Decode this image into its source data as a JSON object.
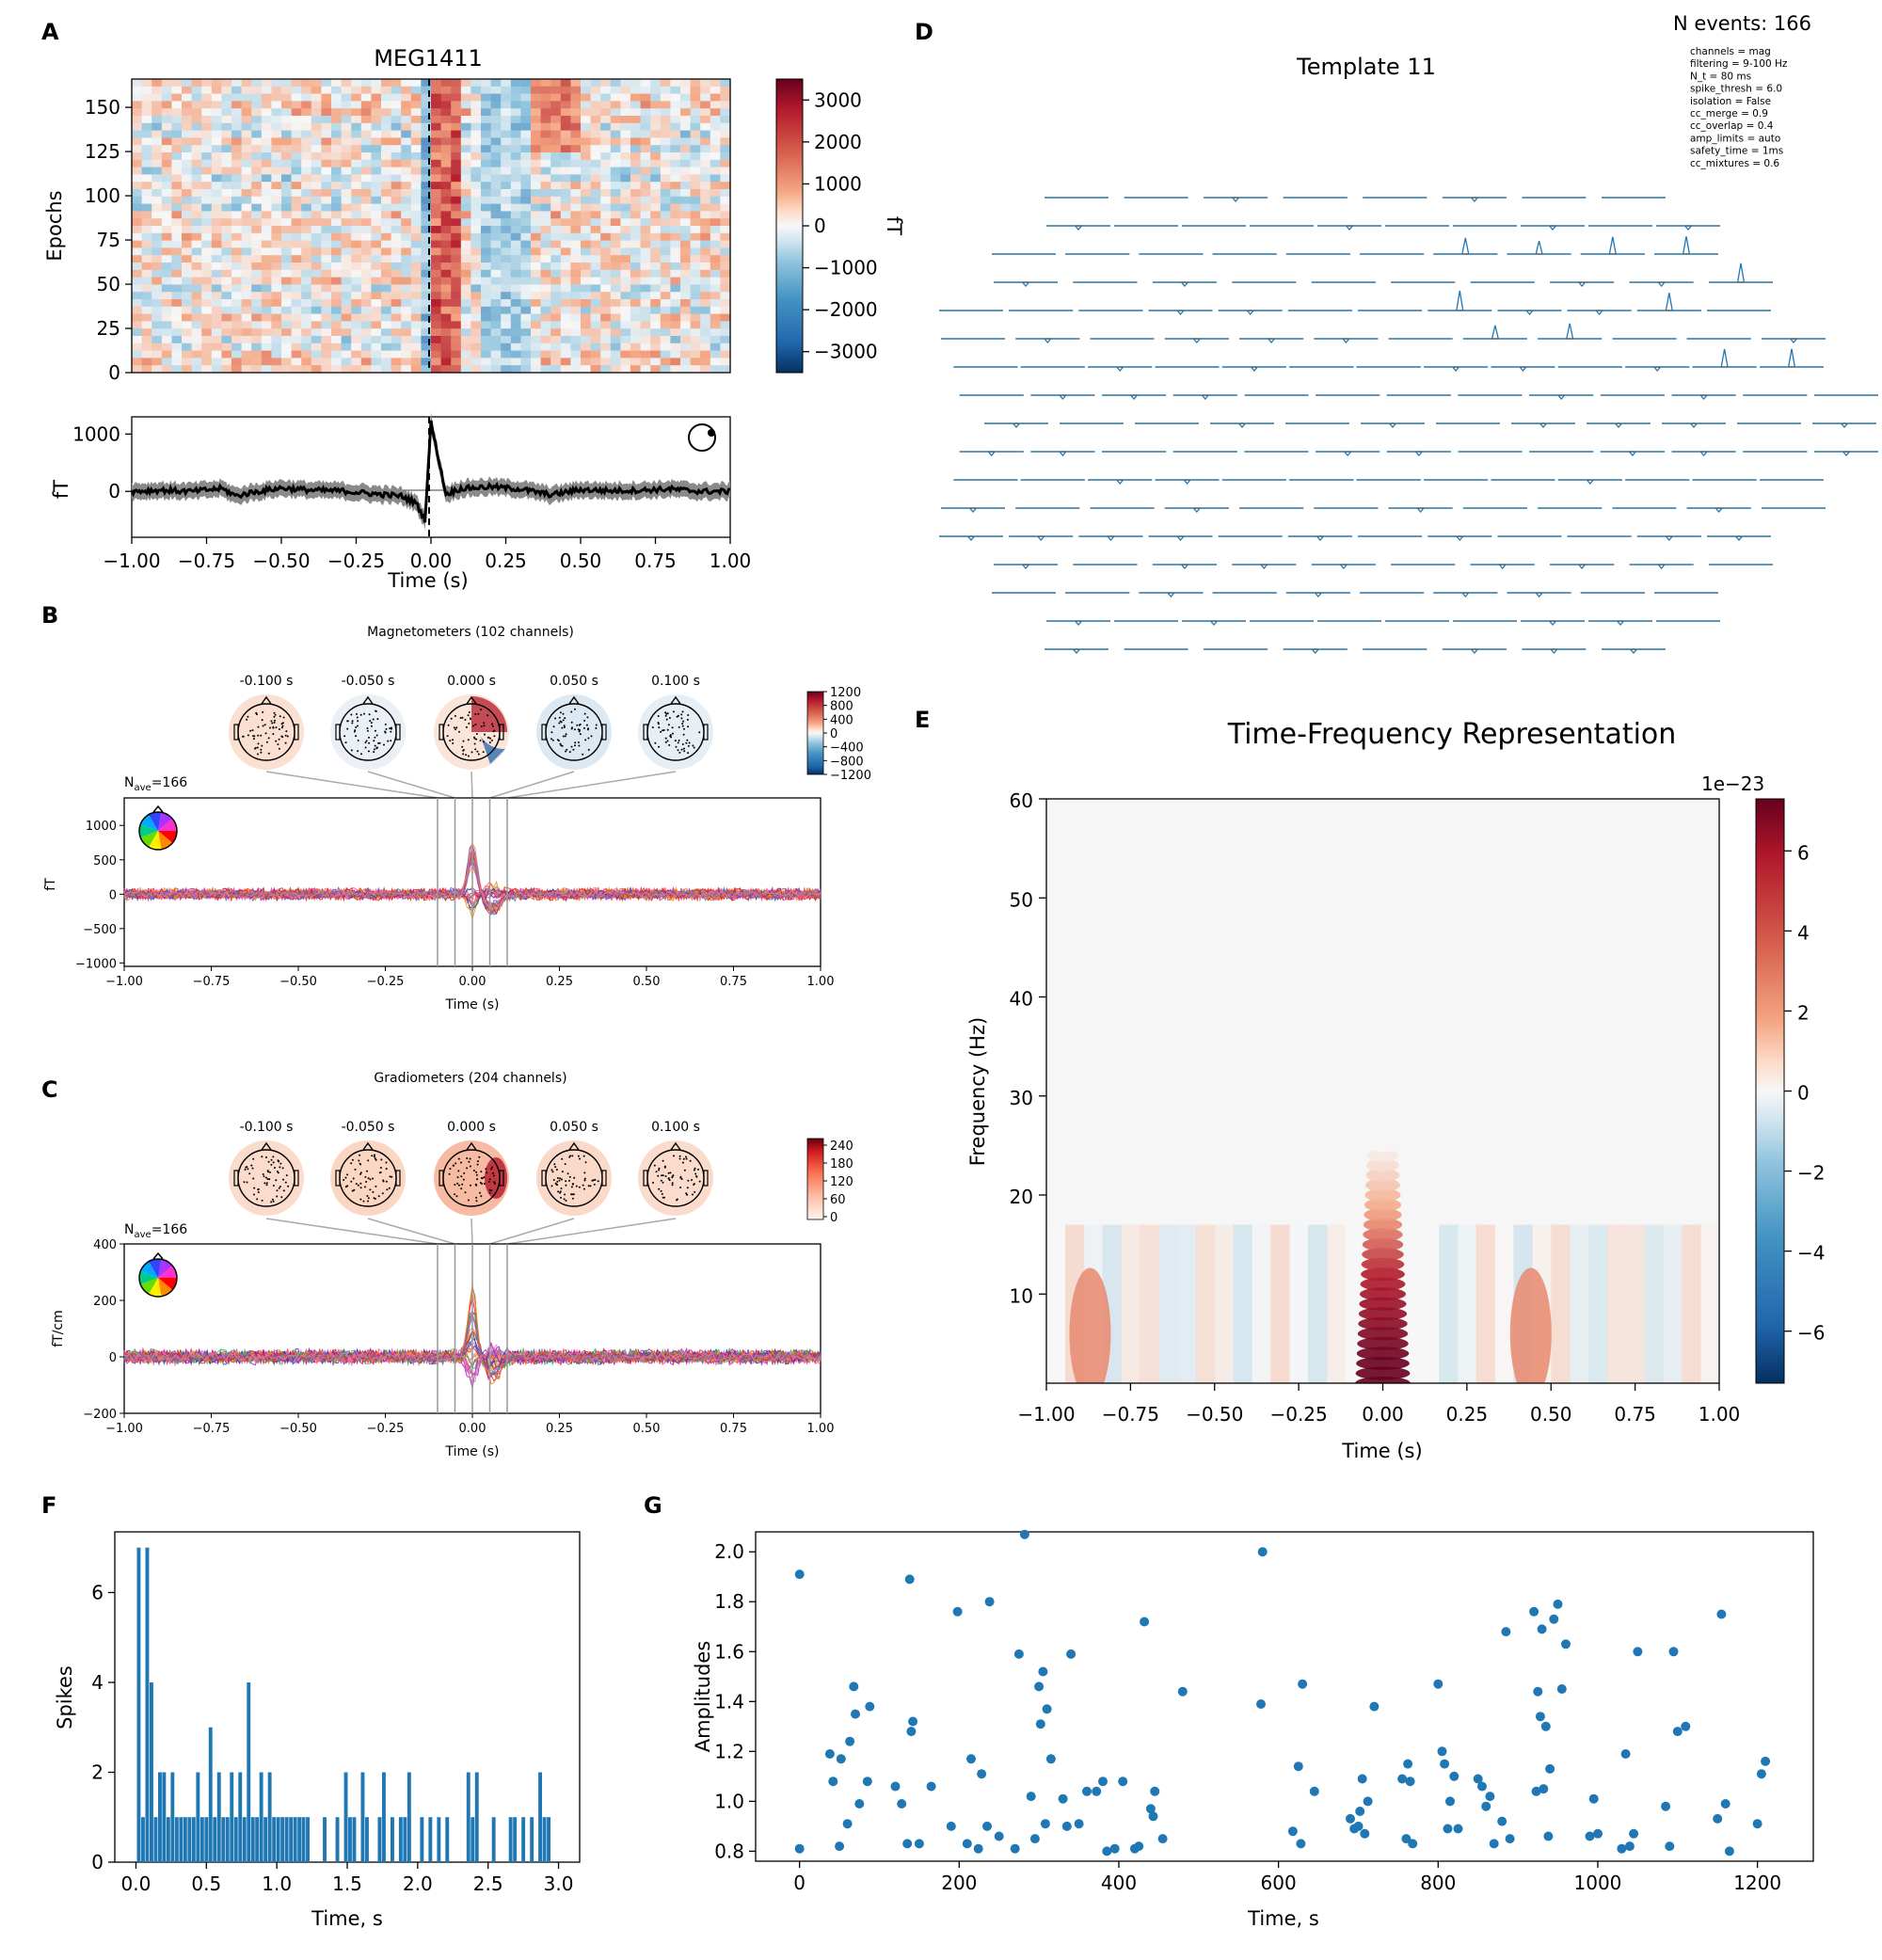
{
  "panels": {
    "A": {
      "letter": "A",
      "title": "MEG1411",
      "ylabel": "Epochs",
      "cbar_label": "fT",
      "ev_ylabel": "fT",
      "xlabel": "Time (s)"
    },
    "B": {
      "letter": "B",
      "title": "Magnetometers (102 channels)",
      "nave": "N",
      "nave_sub": "ave",
      "nave_val": "=166",
      "ylabel": "fT",
      "xlabel": "Time (s)"
    },
    "C": {
      "letter": "C",
      "title": "Gradiometers (204 channels)",
      "nave": "N",
      "nave_sub": "ave",
      "nave_val": "=166",
      "ylabel": "fT/cm",
      "xlabel": "Time (s)"
    },
    "D": {
      "letter": "D",
      "title": "Template 11",
      "n_events": "N events: 166",
      "params": [
        "channels = mag",
        "filtering = 9-100 Hz",
        "N_t = 80 ms",
        "spike_thresh = 6.0",
        "isolation = False",
        "cc_merge = 0.9",
        "cc_overlap = 0.4",
        "amp_limits = auto",
        "safety_time = 1ms",
        "cc_mixtures = 0.6"
      ]
    },
    "E": {
      "letter": "E",
      "title": "Time-Frequency Representation",
      "ylabel": "Frequency (Hz)",
      "xlabel": "Time (s)",
      "cbar_scale": "1e−23"
    },
    "F": {
      "letter": "F",
      "ylabel": "Spikes",
      "xlabel": "Time, s"
    },
    "G": {
      "letter": "G",
      "ylabel": "Amplitudes",
      "xlabel": "Time, s"
    }
  },
  "colors": {
    "accent_blue": "#1f77b4",
    "rdbu_dark_red": "#67001f",
    "rdbu_dark_blue": "#053061"
  },
  "chart_data": [
    {
      "id": "A-image",
      "type": "heatmap",
      "title": "MEG1411",
      "ylabel": "Epochs",
      "xlim": [
        -1.0,
        1.0
      ],
      "ylim": [
        0,
        166
      ],
      "yticks": [
        "0",
        "25",
        "50",
        "75",
        "100",
        "125",
        "150"
      ],
      "colorbar": {
        "label": "fT",
        "range": [
          -3500,
          3500
        ],
        "ticks": [
          "3000",
          "2000",
          "1000",
          "0",
          "−1000",
          "−2000",
          "−3000"
        ]
      }
    },
    {
      "id": "A-evoked",
      "type": "line",
      "xlabel": "Time (s)",
      "ylabel": "fT",
      "xlim": [
        -1.0,
        1.0
      ],
      "ylim": [
        -800,
        1300
      ],
      "xticks": [
        "−1.00",
        "−0.75",
        "−0.50",
        "−0.25",
        "0.00",
        "0.25",
        "0.50",
        "0.75",
        "1.00"
      ],
      "yticks": [
        "0",
        "1000"
      ],
      "series": [
        {
          "x": [
            -1.0,
            -0.9,
            -0.8,
            -0.7,
            -0.65,
            -0.6,
            -0.5,
            -0.4,
            -0.3,
            -0.2,
            -0.1,
            -0.05,
            -0.02,
            0.0,
            0.02,
            0.05,
            0.1,
            0.2,
            0.3,
            0.4,
            0.5,
            0.6,
            0.7,
            0.8,
            0.9,
            1.0
          ],
          "y": [
            0,
            20,
            0,
            50,
            -80,
            -20,
            60,
            20,
            10,
            -40,
            -80,
            -200,
            -500,
            1200,
            700,
            -50,
            50,
            80,
            40,
            -60,
            30,
            10,
            20,
            40,
            0,
            0
          ]
        }
      ]
    },
    {
      "id": "B-topomaps",
      "type": "heatmap",
      "times": [
        "-0.100 s",
        "-0.050 s",
        "0.000 s",
        "0.050 s",
        "0.100 s"
      ],
      "colorbar": {
        "ticks": [
          "1200",
          "800",
          "400",
          "0",
          "−400",
          "−800",
          "−1200"
        ]
      }
    },
    {
      "id": "B-butterfly",
      "type": "line",
      "xlabel": "Time (s)",
      "ylabel": "fT",
      "xlim": [
        -1.0,
        1.0
      ],
      "ylim": [
        -1050,
        1400
      ],
      "xticks": [
        "−1.00",
        "−0.75",
        "−0.50",
        "−0.25",
        "0.00",
        "0.25",
        "0.50",
        "0.75",
        "1.00"
      ],
      "yticks": [
        "1000",
        "500",
        "0",
        "−500",
        "−1000"
      ],
      "markers_x": [
        -0.1,
        -0.05,
        0.0,
        0.05,
        0.1
      ]
    },
    {
      "id": "C-topomaps",
      "type": "heatmap",
      "times": [
        "-0.100 s",
        "-0.050 s",
        "0.000 s",
        "0.050 s",
        "0.100 s"
      ],
      "colorbar": {
        "ticks": [
          "240",
          "180",
          "120",
          "60",
          "0"
        ]
      }
    },
    {
      "id": "C-butterfly",
      "type": "line",
      "xlabel": "Time (s)",
      "ylabel": "fT/cm",
      "xlim": [
        -1.0,
        1.0
      ],
      "ylim": [
        -200,
        400
      ],
      "xticks": [
        "−1.00",
        "−0.75",
        "−0.50",
        "−0.25",
        "0.00",
        "0.25",
        "0.50",
        "0.75",
        "1.00"
      ],
      "yticks": [
        "400",
        "200",
        "0",
        "−200"
      ],
      "markers_x": [
        -0.1,
        -0.05,
        0.0,
        0.05,
        0.1
      ]
    },
    {
      "id": "E-tfr",
      "type": "heatmap",
      "title": "Time-Frequency Representation",
      "xlabel": "Time (s)",
      "ylabel": "Frequency (Hz)",
      "xlim": [
        -1.0,
        1.0
      ],
      "ylim": [
        1,
        60
      ],
      "xticks": [
        "−1.00",
        "−0.75",
        "−0.50",
        "−0.25",
        "0.00",
        "0.25",
        "0.50",
        "0.75",
        "1.00"
      ],
      "yticks": [
        "10",
        "20",
        "30",
        "40",
        "50",
        "60"
      ],
      "colorbar": {
        "scale": "1e−23",
        "range": [
          -7.3,
          7.3
        ],
        "ticks": [
          "6",
          "4",
          "2",
          "0",
          "−2",
          "−4",
          "−6"
        ]
      }
    },
    {
      "id": "F-hist",
      "type": "bar",
      "xlabel": "Time, s",
      "ylabel": "Spikes",
      "xlim": [
        -0.15,
        3.15
      ],
      "ylim": [
        0,
        7.35
      ],
      "xticks": [
        "0.0",
        "0.5",
        "1.0",
        "1.5",
        "2.0",
        "2.5",
        "3.0"
      ],
      "yticks": [
        "0",
        "2",
        "4",
        "6"
      ],
      "x": [
        0.02,
        0.05,
        0.08,
        0.11,
        0.14,
        0.17,
        0.2,
        0.23,
        0.26,
        0.29,
        0.32,
        0.35,
        0.38,
        0.41,
        0.44,
        0.47,
        0.5,
        0.53,
        0.56,
        0.59,
        0.62,
        0.65,
        0.68,
        0.71,
        0.74,
        0.77,
        0.8,
        0.83,
        0.86,
        0.89,
        0.92,
        0.95,
        0.98,
        1.01,
        1.04,
        1.07,
        1.1,
        1.13,
        1.16,
        1.19,
        1.22,
        1.34,
        1.43,
        1.49,
        1.52,
        1.55,
        1.61,
        1.64,
        1.73,
        1.76,
        1.82,
        1.88,
        1.91,
        1.94,
        2.03,
        2.09,
        2.15,
        2.21,
        2.36,
        2.39,
        2.42,
        2.54,
        2.66,
        2.69,
        2.75,
        2.81,
        2.87,
        2.9,
        2.93
      ],
      "values": [
        7,
        1,
        7,
        4,
        1,
        2,
        2,
        1,
        2,
        1,
        1,
        1,
        1,
        1,
        2,
        1,
        1,
        3,
        1,
        2,
        1,
        1,
        2,
        1,
        2,
        1,
        4,
        1,
        1,
        2,
        1,
        2,
        1,
        1,
        1,
        1,
        1,
        1,
        1,
        1,
        1,
        1,
        1,
        2,
        1,
        1,
        2,
        1,
        1,
        2,
        1,
        1,
        1,
        2,
        1,
        1,
        1,
        1,
        2,
        1,
        2,
        1,
        1,
        1,
        1,
        1,
        2,
        1,
        1
      ]
    },
    {
      "id": "G-scatter",
      "type": "scatter",
      "xlabel": "Time, s",
      "ylabel": "Amplitudes",
      "xlim": [
        -55,
        1270
      ],
      "ylim": [
        0.76,
        2.08
      ],
      "xticks": [
        "0",
        "200",
        "400",
        "600",
        "800",
        "1000",
        "1200"
      ],
      "yticks": [
        "0.8",
        "1.0",
        "1.2",
        "1.4",
        "1.6",
        "1.8",
        "2.0"
      ],
      "x": [
        0,
        0,
        38,
        42,
        50,
        52,
        60,
        63,
        68,
        70,
        75,
        85,
        88,
        120,
        128,
        135,
        138,
        140,
        142,
        150,
        165,
        190,
        198,
        210,
        215,
        224,
        228,
        235,
        238,
        250,
        270,
        275,
        282,
        290,
        295,
        300,
        302,
        305,
        308,
        310,
        315,
        330,
        335,
        340,
        350,
        360,
        372,
        380,
        385,
        395,
        405,
        420,
        425,
        432,
        440,
        443,
        445,
        455,
        480,
        578,
        580,
        618,
        625,
        628,
        630,
        645,
        690,
        695,
        700,
        702,
        705,
        708,
        712,
        720,
        755,
        760,
        762,
        765,
        768,
        800,
        805,
        808,
        812,
        815,
        820,
        825,
        850,
        855,
        860,
        865,
        870,
        880,
        885,
        890,
        920,
        923,
        925,
        928,
        930,
        932,
        935,
        938,
        940,
        945,
        950,
        955,
        960,
        990,
        995,
        1000,
        1030,
        1035,
        1040,
        1045,
        1050,
        1085,
        1090,
        1095,
        1100,
        1110,
        1150,
        1155,
        1160,
        1165,
        1200,
        1205,
        1210
      ],
      "y": [
        0.81,
        1.91,
        1.19,
        1.08,
        0.82,
        1.17,
        0.91,
        1.24,
        1.46,
        1.35,
        0.99,
        1.08,
        1.38,
        1.06,
        0.99,
        0.83,
        1.89,
        1.28,
        1.32,
        0.83,
        1.06,
        0.9,
        1.76,
        0.83,
        1.17,
        0.81,
        1.11,
        0.9,
        1.8,
        0.86,
        0.81,
        1.59,
        2.07,
        1.02,
        0.85,
        1.46,
        1.31,
        1.52,
        0.91,
        1.37,
        1.17,
        1.01,
        0.9,
        1.59,
        0.91,
        1.04,
        1.04,
        1.08,
        0.8,
        0.81,
        1.08,
        0.81,
        0.82,
        1.72,
        0.97,
        0.94,
        1.04,
        0.85,
        1.44,
        1.39,
        2.0,
        0.88,
        1.14,
        0.83,
        1.47,
        1.04,
        0.93,
        0.89,
        0.9,
        0.96,
        1.09,
        0.87,
        1.0,
        1.38,
        1.09,
        0.85,
        1.15,
        1.08,
        0.83,
        1.47,
        1.2,
        1.15,
        0.89,
        1.0,
        1.1,
        0.89,
        1.09,
        1.06,
        0.98,
        1.02,
        0.83,
        0.92,
        1.68,
        0.85,
        1.76,
        1.04,
        1.44,
        1.34,
        1.69,
        1.05,
        1.3,
        0.86,
        1.13,
        1.73,
        1.79,
        1.45,
        1.63,
        0.86,
        1.01,
        0.87,
        0.81,
        1.19,
        0.82,
        0.87,
        1.6,
        0.98,
        0.82,
        1.6,
        1.28,
        1.3,
        0.93,
        1.75,
        0.99,
        0.8,
        0.91,
        1.11,
        1.16
      ]
    }
  ]
}
